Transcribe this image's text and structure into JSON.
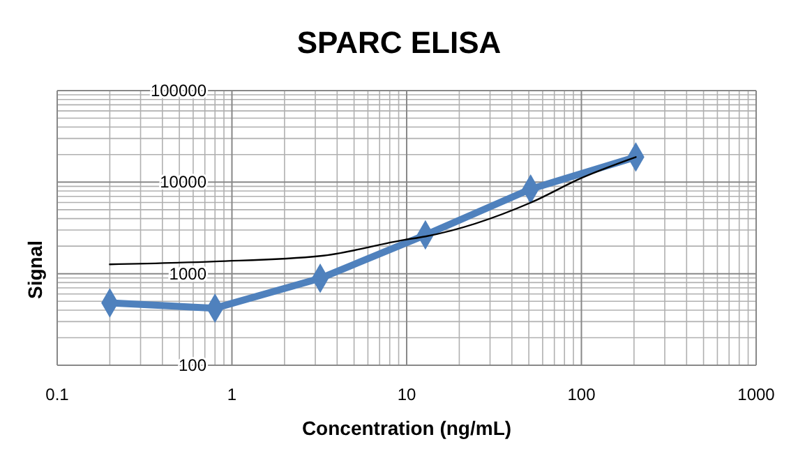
{
  "chart_data": {
    "type": "line",
    "title": "SPARC ELISA",
    "xlabel": "Concentration (ng/mL)",
    "ylabel": "Signal",
    "log": "xy",
    "grid": true,
    "xlim": [
      0.1,
      1000
    ],
    "xticks": [
      0.1,
      1,
      10,
      100,
      1000
    ],
    "ylim": [
      100,
      100000
    ],
    "yticks": [
      100,
      1000,
      10000,
      100000
    ],
    "series": [
      {
        "color": "#4f81bd",
        "marker": "diamond",
        "x": [
          0.2,
          0.8,
          3.2,
          12.8,
          51.2,
          204.8
        ],
        "values": [
          480,
          420,
          890,
          2650,
          8400,
          18800
        ]
      },
      {
        "color": "#000000",
        "marker": "none",
        "x": [
          0.2,
          0.8,
          3.2,
          9.7,
          12.8,
          51.2,
          100,
          204.8
        ],
        "values": [
          1265,
          1360,
          1560,
          2340,
          2550,
          5970,
          11100,
          18800
        ]
      }
    ]
  }
}
